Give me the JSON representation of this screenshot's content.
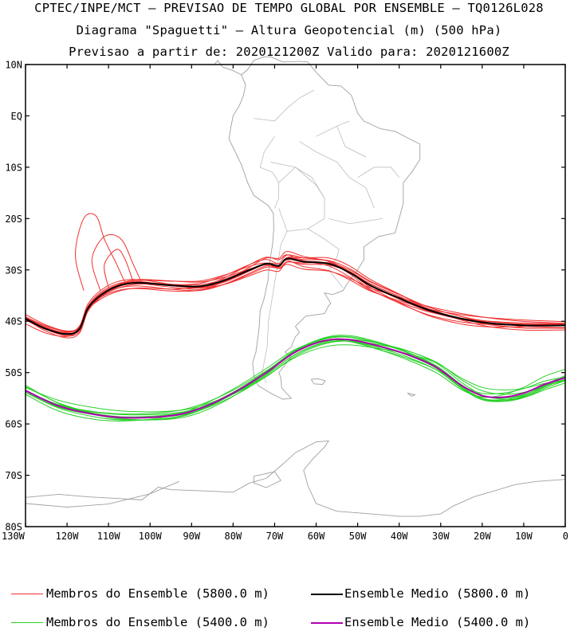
{
  "titles": {
    "line1": "CPTEC/INPE/MCT – PREVISAO DE TEMPO GLOBAL POR ENSEMBLE – TQ0126L028",
    "line2": "Diagrama \"Spaguetti\" – Altura Geopotencial (m) (500 hPa)",
    "line3": "Previsao a partir de: 2020121200Z  Valido para: 2020121600Z"
  },
  "axes": {
    "lat_ticks": [
      "10N",
      "EQ",
      "10S",
      "20S",
      "30S",
      "40S",
      "50S",
      "60S",
      "70S",
      "80S"
    ],
    "lat_values": [
      10,
      0,
      -10,
      -20,
      -30,
      -40,
      -50,
      -60,
      -70,
      -80
    ],
    "lon_ticks": [
      "130W",
      "120W",
      "110W",
      "100W",
      "90W",
      "80W",
      "70W",
      "60W",
      "50W",
      "40W",
      "30W",
      "20W",
      "10W",
      "0"
    ],
    "lon_values": [
      -130,
      -120,
      -110,
      -100,
      -90,
      -80,
      -70,
      -60,
      -50,
      -40,
      -30,
      -20,
      -10,
      0
    ],
    "lon_range": [
      -130,
      0
    ],
    "lat_range": [
      -80,
      10
    ]
  },
  "colors": {
    "member_5800": "#f03030",
    "mean_5800": "#000000",
    "member_5400": "#28d028",
    "mean_5400": "#b000b0",
    "coast": "#a0a0a0"
  },
  "legend": {
    "item1": "Membros do Ensemble (5800.0 m)",
    "item2": "Ensemble Medio (5800.0 m)",
    "item3": "Membros do Ensemble (5400.0 m)",
    "item4": "Ensemble Medio (5400.0 m)"
  },
  "chart_data": {
    "type": "line",
    "contours": [
      {
        "level": 5800,
        "mean": [
          [
            -130,
            -39.5
          ],
          [
            -125,
            -41.5
          ],
          [
            -120,
            -42.5
          ],
          [
            -117,
            -41.5
          ],
          [
            -115,
            -37.5
          ],
          [
            -112,
            -35
          ],
          [
            -108,
            -33.2
          ],
          [
            -103,
            -32.5
          ],
          [
            -95,
            -33
          ],
          [
            -88,
            -33.2
          ],
          [
            -82,
            -32
          ],
          [
            -76,
            -30
          ],
          [
            -72,
            -28.8
          ],
          [
            -69,
            -29.2
          ],
          [
            -67,
            -27.8
          ],
          [
            -63,
            -28.4
          ],
          [
            -57,
            -28.8
          ],
          [
            -52,
            -30.5
          ],
          [
            -47,
            -33
          ],
          [
            -40,
            -35.5
          ],
          [
            -33,
            -37.8
          ],
          [
            -25,
            -39.5
          ],
          [
            -18,
            -40.4
          ],
          [
            -10,
            -40.8
          ],
          [
            0,
            -40.8
          ]
        ]
      },
      {
        "level": 5400,
        "mean": [
          [
            -130,
            -53.5
          ],
          [
            -122,
            -56.5
          ],
          [
            -113,
            -58.2
          ],
          [
            -105,
            -58.8
          ],
          [
            -95,
            -58.4
          ],
          [
            -88,
            -57
          ],
          [
            -80,
            -54
          ],
          [
            -72,
            -50
          ],
          [
            -65,
            -46
          ],
          [
            -58,
            -43.8
          ],
          [
            -52,
            -43.6
          ],
          [
            -45,
            -44.8
          ],
          [
            -38,
            -46.5
          ],
          [
            -31,
            -49
          ],
          [
            -25,
            -52.5
          ],
          [
            -20,
            -54.5
          ],
          [
            -15,
            -54.8
          ],
          [
            -10,
            -54
          ],
          [
            -5,
            -52.3
          ],
          [
            0,
            -51
          ]
        ]
      }
    ]
  }
}
